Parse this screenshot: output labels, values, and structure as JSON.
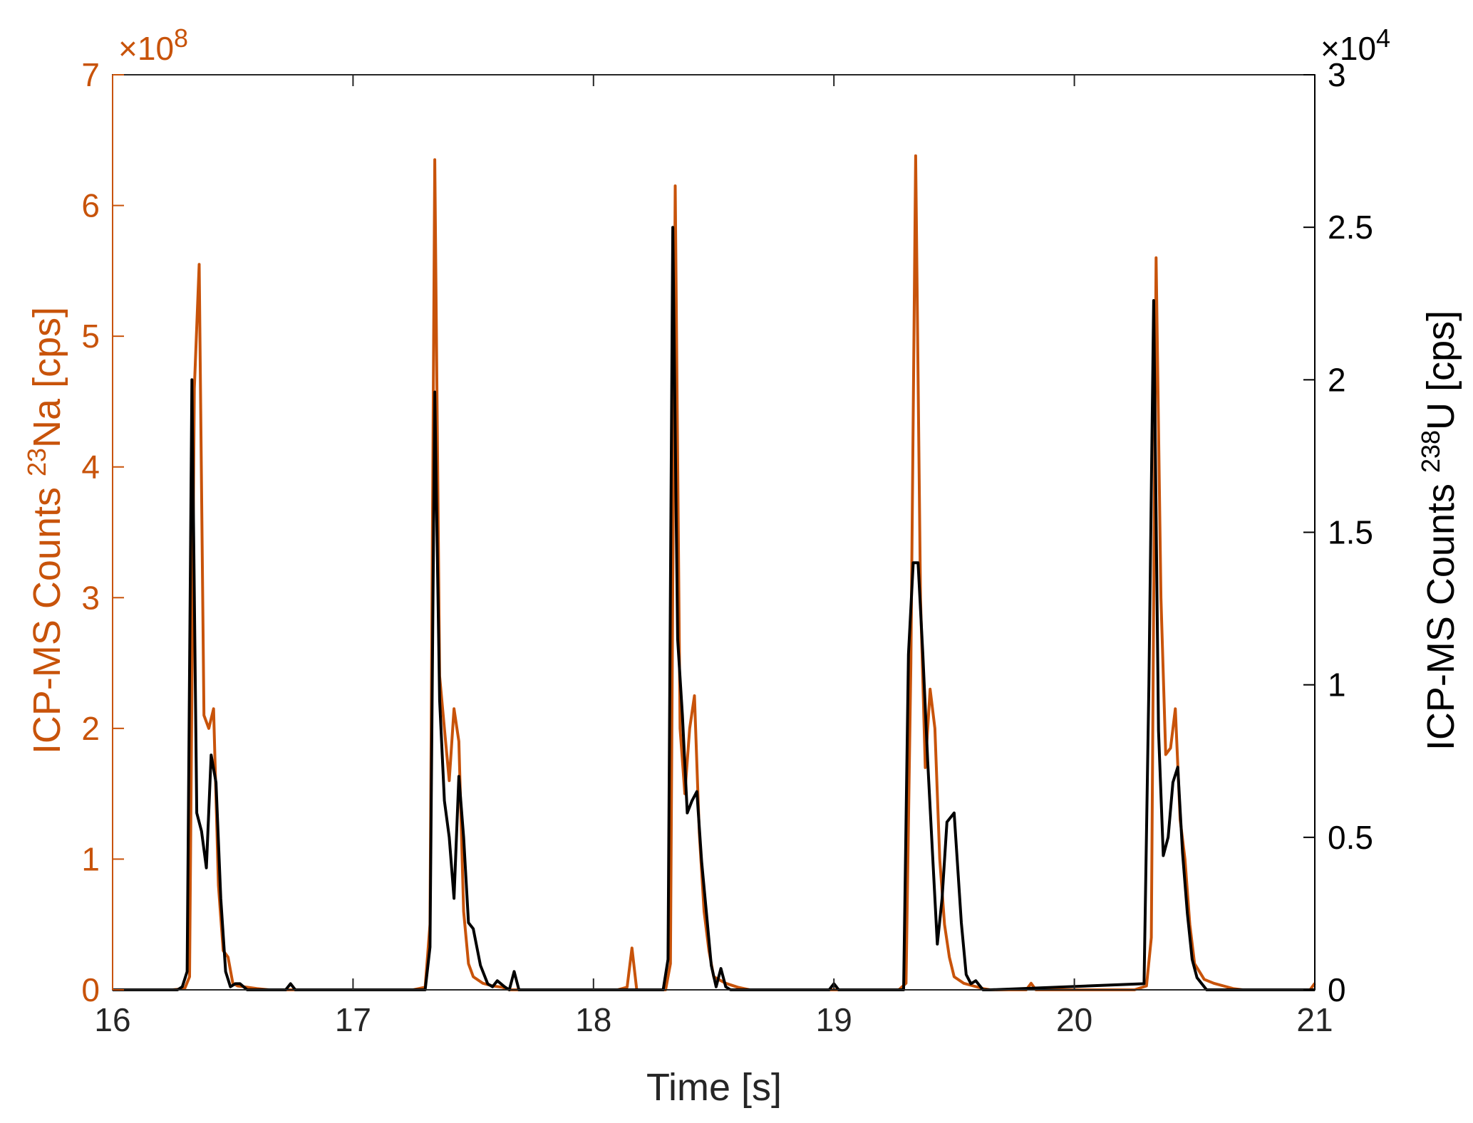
{
  "chart_data": {
    "type": "line",
    "xlabel": "Time [s]",
    "x_range": [
      16,
      21
    ],
    "x_ticks": [
      "16",
      "17",
      "18",
      "19",
      "20",
      "21"
    ],
    "left_axis": {
      "label_prefix": "ICP-MS Counts ",
      "label_isotope_mass": "23",
      "label_element": "Na",
      "label_suffix": " [cps]",
      "range": [
        0,
        7
      ],
      "ticks": [
        "0",
        "1",
        "2",
        "3",
        "4",
        "5",
        "6",
        "7"
      ],
      "exponent_base": "×10",
      "exponent_power": "8",
      "color": "#C8530A"
    },
    "right_axis": {
      "label_prefix": "ICP-MS Counts ",
      "label_isotope_mass": "238",
      "label_element": "U",
      "label_suffix": " [cps]",
      "range": [
        0,
        3
      ],
      "ticks": [
        "0",
        "0.5",
        "1",
        "1.5",
        "2",
        "2.5",
        "3"
      ],
      "exponent_base": "×10",
      "exponent_power": "4",
      "color": "#000000"
    },
    "grid": false,
    "series": [
      {
        "axis": "left",
        "color": "#C8530A",
        "x": [
          16.0,
          16.25,
          16.3,
          16.32,
          16.34,
          16.36,
          16.38,
          16.4,
          16.42,
          16.44,
          16.46,
          16.48,
          16.5,
          16.52,
          16.56,
          16.6,
          16.65,
          16.7,
          17.0,
          17.25,
          17.3,
          17.32,
          17.34,
          17.36,
          17.38,
          17.4,
          17.42,
          17.44,
          17.46,
          17.48,
          17.5,
          17.54,
          17.58,
          17.62,
          17.65,
          17.7,
          18.1,
          18.14,
          18.16,
          18.18,
          18.3,
          18.32,
          18.34,
          18.36,
          18.38,
          18.4,
          18.42,
          18.44,
          18.46,
          18.48,
          18.5,
          18.55,
          18.6,
          18.65,
          19.0,
          19.27,
          19.3,
          19.32,
          19.34,
          19.36,
          19.38,
          19.4,
          19.42,
          19.44,
          19.46,
          19.48,
          19.5,
          19.54,
          19.58,
          19.62,
          19.65,
          19.8,
          19.82,
          19.84,
          20.25,
          20.3,
          20.32,
          20.34,
          20.36,
          20.38,
          20.4,
          20.42,
          20.44,
          20.46,
          20.48,
          20.5,
          20.54,
          20.58,
          20.62,
          20.66,
          20.7,
          20.98,
          21.0
        ],
        "y": [
          0,
          0,
          0.01,
          0.1,
          4.6,
          5.55,
          2.1,
          2.0,
          2.15,
          0.8,
          0.3,
          0.25,
          0.05,
          0.03,
          0.02,
          0.01,
          0,
          0,
          0,
          0,
          0.02,
          0.5,
          6.35,
          2.4,
          2.0,
          1.6,
          2.15,
          1.9,
          0.6,
          0.2,
          0.1,
          0.05,
          0.03,
          0.02,
          0,
          0,
          0,
          0.02,
          0.32,
          0,
          0,
          0.2,
          6.15,
          2.0,
          1.5,
          2.0,
          2.25,
          1.2,
          0.6,
          0.3,
          0.1,
          0.05,
          0.02,
          0,
          0,
          0,
          0.05,
          2.5,
          6.38,
          3.0,
          1.7,
          2.3,
          2.0,
          1.0,
          0.5,
          0.25,
          0.1,
          0.05,
          0.03,
          0.01,
          0,
          0,
          0.05,
          0,
          0,
          0.03,
          0.4,
          5.6,
          3.0,
          1.8,
          1.85,
          2.15,
          1.3,
          1.0,
          0.5,
          0.2,
          0.08,
          0.05,
          0.03,
          0.01,
          0,
          0,
          0.05
        ]
      },
      {
        "axis": "right",
        "color": "#000000",
        "x": [
          16.0,
          16.27,
          16.29,
          16.31,
          16.33,
          16.35,
          16.37,
          16.39,
          16.41,
          16.43,
          16.45,
          16.47,
          16.49,
          16.51,
          16.53,
          16.56,
          16.6,
          16.72,
          16.74,
          16.76,
          17.0,
          17.3,
          17.32,
          17.34,
          17.36,
          17.38,
          17.4,
          17.42,
          17.44,
          17.46,
          17.48,
          17.5,
          17.53,
          17.56,
          17.58,
          17.6,
          17.63,
          17.65,
          17.67,
          17.69,
          17.9,
          18.29,
          18.31,
          18.33,
          18.35,
          18.37,
          18.39,
          18.41,
          18.43,
          18.45,
          18.47,
          18.49,
          18.51,
          18.53,
          18.55,
          18.57,
          18.6,
          18.98,
          19.0,
          19.02,
          19.29,
          19.31,
          19.33,
          19.35,
          19.37,
          19.39,
          19.41,
          19.43,
          19.45,
          19.47,
          19.5,
          19.53,
          19.55,
          19.57,
          19.59,
          19.62,
          19.65,
          20.29,
          20.31,
          20.33,
          20.35,
          20.37,
          20.39,
          20.41,
          20.43,
          20.45,
          20.47,
          20.49,
          20.51,
          20.53,
          20.55,
          20.58,
          20.62,
          21.0
        ],
        "y": [
          0,
          0,
          0.01,
          0.06,
          2.0,
          0.58,
          0.52,
          0.4,
          0.77,
          0.68,
          0.3,
          0.06,
          0.01,
          0.02,
          0.02,
          0,
          0,
          0,
          0.02,
          0,
          0,
          0,
          0.14,
          1.96,
          0.95,
          0.62,
          0.5,
          0.3,
          0.7,
          0.5,
          0.22,
          0.2,
          0.08,
          0.02,
          0.01,
          0.03,
          0.01,
          0,
          0.06,
          0,
          0,
          0,
          0.1,
          2.5,
          1.15,
          0.9,
          0.58,
          0.62,
          0.65,
          0.42,
          0.25,
          0.08,
          0.01,
          0.07,
          0.01,
          0,
          0,
          0,
          0.02,
          0,
          0,
          1.1,
          1.4,
          1.4,
          1.1,
          0.75,
          0.45,
          0.15,
          0.3,
          0.55,
          0.58,
          0.22,
          0.05,
          0.02,
          0.03,
          0,
          0,
          0.02,
          1.0,
          2.26,
          0.85,
          0.44,
          0.5,
          0.68,
          0.73,
          0.45,
          0.25,
          0.1,
          0.04,
          0.02,
          0,
          0,
          0,
          0
        ]
      }
    ]
  }
}
